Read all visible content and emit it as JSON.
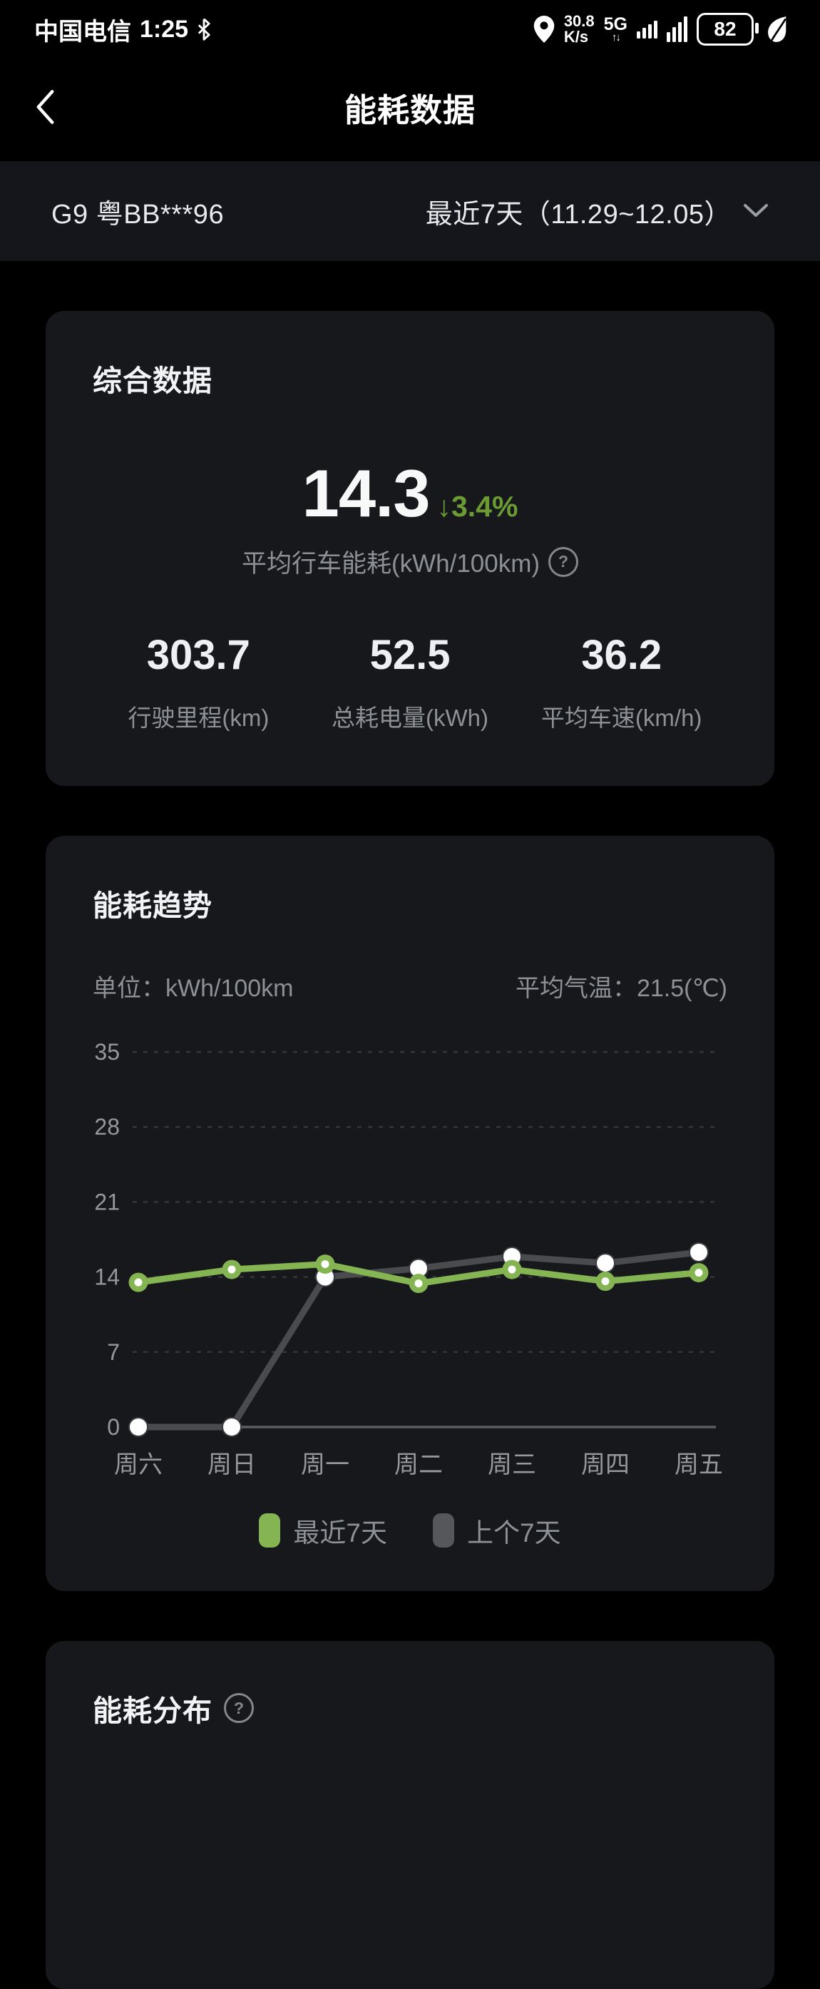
{
  "status_bar": {
    "carrier": "中国电信",
    "time": "1:25",
    "net_speed_value": "30.8",
    "net_speed_unit": "K/s",
    "network": "5G",
    "battery_percent": "82"
  },
  "nav": {
    "title": "能耗数据"
  },
  "vehicle_bar": {
    "vehicle": "G9 粤BB***96",
    "range_label": "最近7天（11.29~12.05）"
  },
  "summary_card": {
    "title": "综合数据",
    "main_value": "14.3",
    "delta_arrow": "↓",
    "delta": "3.4%",
    "main_label": "平均行车能耗(kWh/100km)",
    "help_glyph": "?",
    "stats": [
      {
        "value": "303.7",
        "label": "行驶里程(km)"
      },
      {
        "value": "52.5",
        "label": "总耗电量(kWh)"
      },
      {
        "value": "36.2",
        "label": "平均车速(km/h)"
      }
    ]
  },
  "trend_card": {
    "title": "能耗趋势",
    "unit_label": "单位：kWh/100km",
    "temp_label": "平均气温：21.5(℃)"
  },
  "chart_data": {
    "type": "line",
    "categories": [
      "周六",
      "周日",
      "周一",
      "周二",
      "周三",
      "周四",
      "周五"
    ],
    "series": [
      {
        "name": "最近7天",
        "color": "#85b452",
        "values": [
          13.5,
          14.7,
          15.2,
          13.4,
          14.7,
          13.6,
          14.4
        ]
      },
      {
        "name": "上个7天",
        "color": "#494b4f",
        "values": [
          0,
          0,
          14.0,
          14.8,
          15.9,
          15.3,
          16.3
        ]
      }
    ],
    "yticks": [
      35,
      28,
      21,
      14,
      7,
      0
    ],
    "ylim": [
      0,
      35
    ],
    "grid": "dashed horizontal, solid zero baseline",
    "legend_position": "bottom",
    "title": "能耗趋势",
    "ylabel": "kWh/100km"
  },
  "distribution_card": {
    "title": "能耗分布",
    "help_glyph": "?"
  },
  "colors": {
    "accent_green": "#85b452",
    "delta_green": "#6b9c33",
    "gray_line": "#494b4f",
    "card_bg": "#17181b",
    "text_gray": "#8d9094"
  }
}
